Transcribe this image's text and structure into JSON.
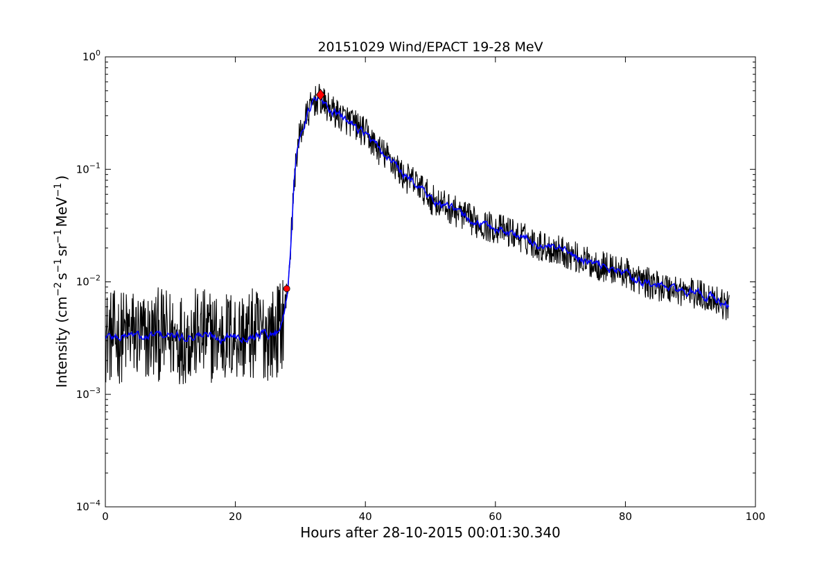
{
  "chart_data": {
    "type": "line",
    "title": "20151029 Wind/EPACT 19-28 MeV",
    "xlabel": "Hours after 28-10-2015 00:01:30.340",
    "ylabel": "Intensity (cm^-2 s^-1 sr^-1 MeV^-1)",
    "ylabel_parts": [
      "Intensity (cm",
      "−2",
      "s",
      "−1",
      "sr",
      "−1",
      "MeV",
      "−1",
      ")"
    ],
    "xlim": [
      0,
      100
    ],
    "ylim": [
      0.0001,
      1
    ],
    "yscale": "log",
    "x_ticks": [
      {
        "value": 0,
        "label": "0"
      },
      {
        "value": 20,
        "label": "20"
      },
      {
        "value": 40,
        "label": "40"
      },
      {
        "value": 60,
        "label": "60"
      },
      {
        "value": 80,
        "label": "80"
      },
      {
        "value": 100,
        "label": "100"
      }
    ],
    "y_ticks": [
      {
        "value": 0.0001,
        "base": "10",
        "exp": "−4"
      },
      {
        "value": 0.001,
        "base": "10",
        "exp": "−3"
      },
      {
        "value": 0.01,
        "base": "10",
        "exp": "−2"
      },
      {
        "value": 0.1,
        "base": "10",
        "exp": "−1"
      },
      {
        "value": 1,
        "base": "10",
        "exp": "0"
      }
    ],
    "grid": false,
    "series": [
      {
        "role": "raw intensity",
        "color": "#000000",
        "x": [
          0,
          2,
          4,
          6,
          8,
          10,
          12,
          14,
          16,
          18,
          20,
          22,
          24,
          26,
          27,
          27.5,
          28,
          28.5,
          29,
          29.5,
          30,
          31,
          32,
          33,
          34,
          36,
          38,
          40,
          42,
          44,
          46,
          48,
          50,
          52,
          54,
          56,
          58,
          60,
          62,
          64,
          66,
          68,
          70,
          72,
          74,
          76,
          78,
          80,
          82,
          84,
          86,
          88,
          90,
          92,
          94,
          96
        ],
        "y": [
          0.0033,
          0.0032,
          0.0035,
          0.0031,
          0.0034,
          0.0033,
          0.0032,
          0.0034,
          0.0033,
          0.0032,
          0.0034,
          0.0033,
          0.0035,
          0.0034,
          0.004,
          0.0055,
          0.0085,
          0.02,
          0.07,
          0.15,
          0.21,
          0.3,
          0.4,
          0.42,
          0.36,
          0.3,
          0.26,
          0.21,
          0.15,
          0.12,
          0.085,
          0.075,
          0.055,
          0.048,
          0.042,
          0.036,
          0.032,
          0.03,
          0.028,
          0.025,
          0.022,
          0.02,
          0.019,
          0.017,
          0.015,
          0.014,
          0.013,
          0.012,
          0.0105,
          0.0095,
          0.009,
          0.0085,
          0.008,
          0.0075,
          0.007,
          0.0058
        ]
      },
      {
        "role": "smoothed intensity",
        "color": "#0000ff",
        "x": [
          0,
          2,
          4,
          6,
          8,
          10,
          12,
          14,
          16,
          18,
          20,
          22,
          24,
          26,
          27,
          27.5,
          28,
          28.5,
          29,
          29.5,
          30,
          31,
          32,
          33,
          34,
          36,
          38,
          40,
          42,
          44,
          46,
          48,
          50,
          52,
          54,
          56,
          58,
          60,
          62,
          64,
          66,
          68,
          70,
          72,
          74,
          76,
          78,
          80,
          82,
          84,
          86,
          88,
          90,
          92,
          94,
          96
        ],
        "y": [
          0.0033,
          0.0032,
          0.0035,
          0.0031,
          0.0034,
          0.0033,
          0.0032,
          0.0034,
          0.0033,
          0.0032,
          0.0034,
          0.0033,
          0.0035,
          0.0034,
          0.004,
          0.0055,
          0.0085,
          0.02,
          0.07,
          0.15,
          0.21,
          0.3,
          0.4,
          0.42,
          0.36,
          0.3,
          0.26,
          0.21,
          0.15,
          0.12,
          0.085,
          0.075,
          0.055,
          0.048,
          0.042,
          0.036,
          0.032,
          0.03,
          0.028,
          0.025,
          0.022,
          0.02,
          0.019,
          0.017,
          0.015,
          0.014,
          0.013,
          0.012,
          0.0105,
          0.0095,
          0.009,
          0.0085,
          0.008,
          0.0075,
          0.007,
          0.0058
        ]
      }
    ],
    "markers": [
      {
        "role": "onset",
        "shape": "circle",
        "color": "#ff0000",
        "x": 27.9,
        "y": 0.0087
      },
      {
        "role": "peak",
        "shape": "diamond",
        "color": "#ff0000",
        "x": 33.1,
        "y": 0.46
      }
    ]
  }
}
